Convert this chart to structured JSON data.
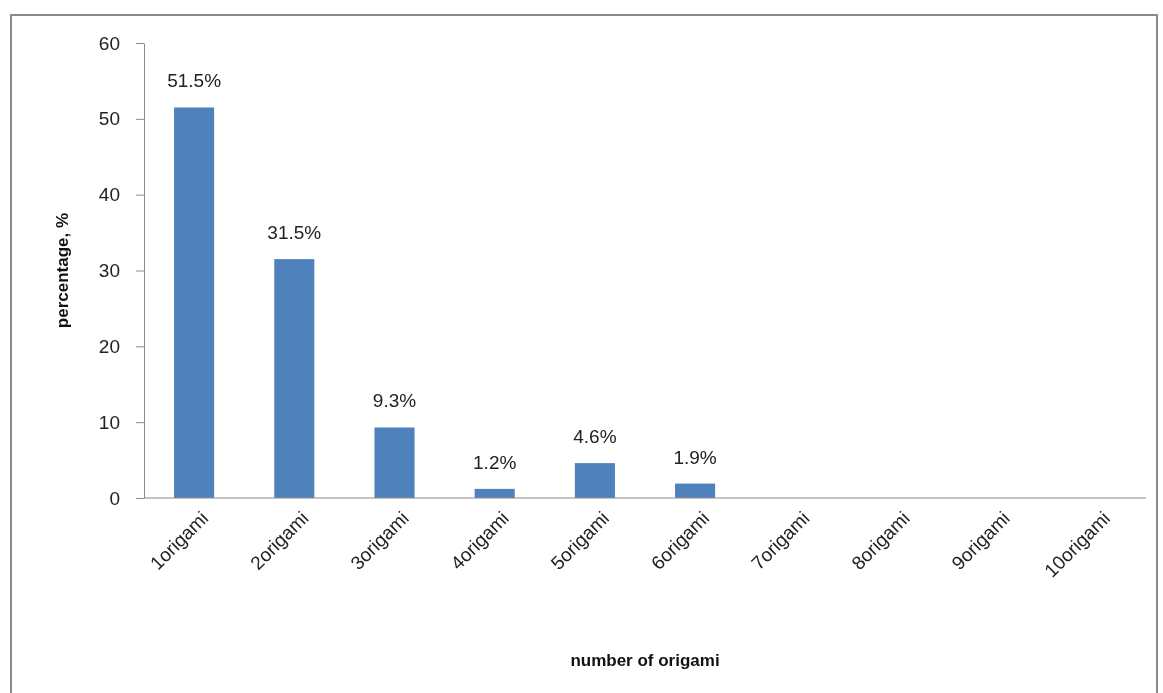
{
  "chart_data": {
    "type": "bar",
    "xlabel": "number of origami",
    "ylabel": "percentage, %",
    "categories": [
      "1origami",
      "2origami",
      "3origami",
      "4origami",
      "5origami",
      "6origami",
      "7origami",
      "8origami",
      "9origami",
      "10origami"
    ],
    "values": [
      51.5,
      31.5,
      9.3,
      1.2,
      4.6,
      1.9,
      0,
      0,
      0,
      0
    ],
    "value_labels": [
      "51.5%",
      "31.5%",
      "9.3%",
      "1.2%",
      "4.6%",
      "1.9%",
      null,
      null,
      null,
      null
    ],
    "color": "#4f81bd",
    "ylim": [
      0,
      60
    ],
    "yticks": [
      0,
      10,
      20,
      30,
      40,
      50,
      60
    ],
    "grid": false
  }
}
